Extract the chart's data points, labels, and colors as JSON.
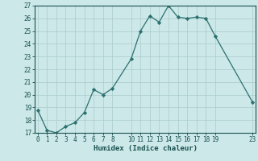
{
  "x": [
    0,
    1,
    2,
    3,
    4,
    5,
    6,
    7,
    8,
    10,
    11,
    12,
    13,
    14,
    15,
    16,
    17,
    18,
    19,
    23
  ],
  "y": [
    18.8,
    17.2,
    17.0,
    17.5,
    17.8,
    18.6,
    20.4,
    20.0,
    20.5,
    22.8,
    25.0,
    26.2,
    25.7,
    27.0,
    26.1,
    26.0,
    26.1,
    26.0,
    24.6,
    19.4
  ],
  "line_color": "#2d7070",
  "marker_color": "#2d7070",
  "bg_color": "#cce8e8",
  "grid_color_major": "#aacccc",
  "grid_color_minor": "#bbdddd",
  "axis_color": "#1a5050",
  "tick_color": "#1a5050",
  "xlabel": "Humidex (Indice chaleur)",
  "ylim": [
    17,
    27
  ],
  "xlim": [
    -0.3,
    23.3
  ],
  "yticks": [
    17,
    18,
    19,
    20,
    21,
    22,
    23,
    24,
    25,
    26,
    27
  ],
  "xticks": [
    0,
    1,
    2,
    3,
    4,
    5,
    6,
    7,
    8,
    10,
    11,
    12,
    13,
    14,
    15,
    16,
    17,
    18,
    19,
    23
  ],
  "xlabel_fontsize": 6.5,
  "tick_fontsize": 5.5
}
